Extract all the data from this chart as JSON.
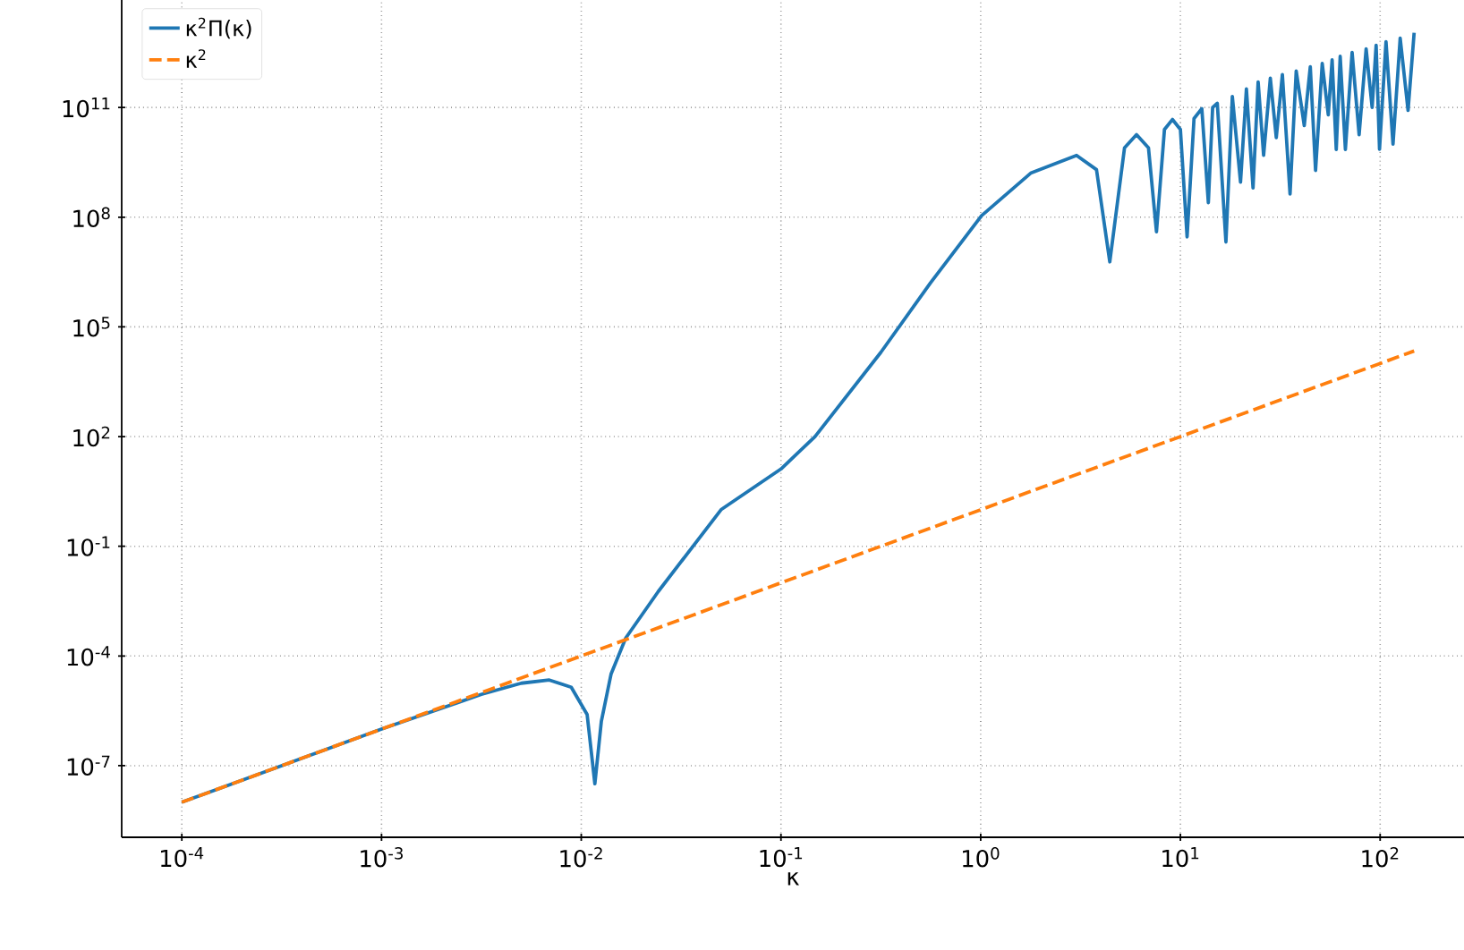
{
  "chart_data": {
    "type": "line",
    "xlabel": "κ",
    "log": "xy",
    "grid": true,
    "legend": "top left",
    "marker": "none",
    "xlim": [
      5e-05,
      263
    ],
    "ylim": [
      1.1e-09,
      87000000000000.0
    ],
    "xticks": [
      {
        "value": 0.0001,
        "label": "10$^{-4}$"
      },
      {
        "value": 0.001,
        "label": "10$^{-3}$"
      },
      {
        "value": 0.01,
        "label": "10$^{-2}$"
      },
      {
        "value": 0.1,
        "label": "10$^{-1}$"
      },
      {
        "value": 1,
        "label": "10$^{0}$"
      },
      {
        "value": 10,
        "label": "10$^{1}$"
      },
      {
        "value": 100,
        "label": "10$^{2}$"
      }
    ],
    "yticks": [
      {
        "value": 1e-07,
        "label": "10$^{-7}$"
      },
      {
        "value": 0.0001,
        "label": "10$^{-4}$"
      },
      {
        "value": 0.1,
        "label": "10$^{-1}$"
      },
      {
        "value": 100,
        "label": "10$^{2}$"
      },
      {
        "value": 100000.0,
        "label": "10$^{5}$"
      },
      {
        "value": 100000000.0,
        "label": "10$^{8}$"
      },
      {
        "value": 100000000000.0,
        "label": "10$^{11}$"
      }
    ],
    "series": [
      {
        "name": "κ$^{2}$Π(κ)",
        "color": "#1f77b4",
        "line_style": "solid",
        "x": [
          0.0001,
          0.000316,
          0.001,
          0.00316,
          0.00501,
          0.00692,
          0.00891,
          0.0107,
          0.0117,
          0.0126,
          0.0141,
          0.0167,
          0.0243,
          0.0501,
          0.1,
          0.148,
          0.316,
          0.561,
          1.01,
          1.78,
          3.02,
          3.8,
          4.43,
          5.25,
          6.03,
          6.92,
          7.59,
          8.32,
          9.12,
          10,
          10.8,
          11.7,
          12.8,
          13.8,
          14.5,
          15.3,
          16.9,
          18.2,
          20,
          21.4,
          23.1,
          24.5,
          26.1,
          28.2,
          30.2,
          32.4,
          35.4,
          38,
          41.7,
          44.7,
          47.5,
          51.3,
          55,
          57.5,
          60.3,
          63.1,
          67,
          72.4,
          78.5,
          85.1,
          91.2,
          95.5,
          99.3,
          107,
          116,
          126,
          138,
          148
        ],
        "values": [
          1e-08,
          1e-07,
          1e-06,
          8.9e-06,
          1.8e-05,
          2.2e-05,
          1.4e-05,
          2.5e-06,
          3.2e-08,
          1.6e-06,
          3.2e-05,
          0.00031,
          0.0058,
          1,
          13,
          100,
          20000.0,
          1600000.0,
          110000000.0,
          1600000000.0,
          4900000000.0,
          2000000000.0,
          6000000.0,
          7900000000.0,
          18000000000.0,
          7900000000.0,
          40000000.0,
          25000000000.0,
          47000000000.0,
          25000000000.0,
          29000000.0,
          50000000000.0,
          93000000000.0,
          250000000.0,
          100000000000.0,
          130000000000.0,
          21000000.0,
          200000000000.0,
          910000000.0,
          320000000000.0,
          630000000.0,
          500000000000.0,
          4900000000.0,
          630000000000.0,
          15000000000.0,
          790000000000.0,
          430000000.0,
          1000000000000.0,
          32000000000.0,
          1300000000000.0,
          1900000000.0,
          1600000000000.0,
          63000000000.0,
          2000000000000.0,
          7100000000.0,
          2500000000000.0,
          7100000000.0,
          3200000000000.0,
          18000000000.0,
          4000000000000.0,
          100000000000.0,
          5000000000000.0,
          7200000000.0,
          6300000000000.0,
          10000000000.0,
          7900000000000.0,
          83000000000.0,
          11000000000000.0
        ]
      },
      {
        "name": "κ$^{2}$",
        "color": "#ff7f0e",
        "line_style": "dashed",
        "x": [
          0.0001,
          148
        ],
        "values": [
          1e-08,
          21900.0
        ]
      }
    ]
  }
}
